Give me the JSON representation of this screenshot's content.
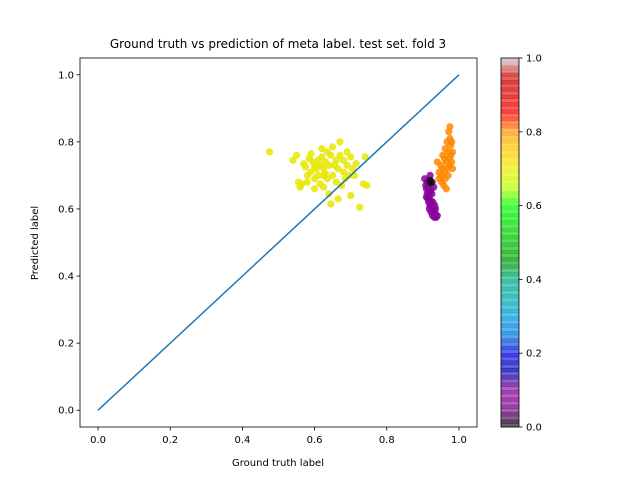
{
  "chart_data": {
    "type": "scatter",
    "title": "Ground truth vs prediction of meta label. test set. fold 3",
    "xlabel": "Ground truth label",
    "ylabel": "Predicted label",
    "xlim": [
      -0.05,
      1.05
    ],
    "ylim": [
      -0.05,
      1.05
    ],
    "xticks": [
      "0.0",
      "0.2",
      "0.4",
      "0.6",
      "0.8",
      "1.0"
    ],
    "yticks": [
      "0.0",
      "0.2",
      "0.4",
      "0.6",
      "0.8",
      "1.0"
    ],
    "grid": false,
    "reference_line": {
      "x": [
        0.0,
        1.0
      ],
      "y": [
        0.0,
        1.0
      ],
      "color": "#1f77b4"
    },
    "colorbar": {
      "colormap": "nipy_spectral",
      "range": [
        0.0,
        1.0
      ],
      "ticks": [
        "0.0",
        "0.2",
        "0.4",
        "0.6",
        "0.8",
        "1.0"
      ]
    },
    "series": [
      {
        "color_value": 0.68,
        "color": "#e6e600",
        "points": [
          [
            0.475,
            0.77
          ],
          [
            0.54,
            0.745
          ],
          [
            0.55,
            0.76
          ],
          [
            0.555,
            0.68
          ],
          [
            0.56,
            0.665
          ],
          [
            0.565,
            0.675
          ],
          [
            0.57,
            0.735
          ],
          [
            0.575,
            0.725
          ],
          [
            0.58,
            0.68
          ],
          [
            0.585,
            0.75
          ],
          [
            0.59,
            0.765
          ],
          [
            0.59,
            0.71
          ],
          [
            0.595,
            0.74
          ],
          [
            0.6,
            0.69
          ],
          [
            0.6,
            0.725
          ],
          [
            0.605,
            0.72
          ],
          [
            0.61,
            0.745
          ],
          [
            0.61,
            0.7
          ],
          [
            0.615,
            0.675
          ],
          [
            0.615,
            0.73
          ],
          [
            0.62,
            0.78
          ],
          [
            0.62,
            0.755
          ],
          [
            0.625,
            0.72
          ],
          [
            0.625,
            0.665
          ],
          [
            0.63,
            0.74
          ],
          [
            0.63,
            0.705
          ],
          [
            0.635,
            0.77
          ],
          [
            0.635,
            0.69
          ],
          [
            0.64,
            0.645
          ],
          [
            0.64,
            0.73
          ],
          [
            0.645,
            0.76
          ],
          [
            0.645,
            0.615
          ],
          [
            0.65,
            0.7
          ],
          [
            0.655,
            0.73
          ],
          [
            0.66,
            0.68
          ],
          [
            0.66,
            0.745
          ],
          [
            0.665,
            0.63
          ],
          [
            0.665,
            0.72
          ],
          [
            0.67,
            0.8
          ],
          [
            0.67,
            0.76
          ],
          [
            0.675,
            0.67
          ],
          [
            0.68,
            0.71
          ],
          [
            0.68,
            0.745
          ],
          [
            0.685,
            0.69
          ],
          [
            0.69,
            0.73
          ],
          [
            0.695,
            0.7
          ],
          [
            0.7,
            0.64
          ],
          [
            0.7,
            0.755
          ],
          [
            0.705,
            0.72
          ],
          [
            0.71,
            0.7
          ],
          [
            0.715,
            0.735
          ],
          [
            0.725,
            0.605
          ],
          [
            0.735,
            0.675
          ],
          [
            0.74,
            0.755
          ],
          [
            0.745,
            0.67
          ],
          [
            0.6,
            0.66
          ],
          [
            0.65,
            0.785
          ],
          [
            0.58,
            0.7
          ],
          [
            0.625,
            0.7
          ],
          [
            0.69,
            0.77
          ]
        ]
      },
      {
        "color_value": 0.82,
        "color": "#ff8800",
        "points": [
          [
            0.94,
            0.74
          ],
          [
            0.945,
            0.71
          ],
          [
            0.945,
            0.69
          ],
          [
            0.95,
            0.73
          ],
          [
            0.95,
            0.7
          ],
          [
            0.952,
            0.68
          ],
          [
            0.955,
            0.76
          ],
          [
            0.955,
            0.72
          ],
          [
            0.958,
            0.67
          ],
          [
            0.96,
            0.75
          ],
          [
            0.96,
            0.71
          ],
          [
            0.962,
            0.78
          ],
          [
            0.962,
            0.69
          ],
          [
            0.965,
            0.66
          ],
          [
            0.965,
            0.74
          ],
          [
            0.967,
            0.8
          ],
          [
            0.967,
            0.72
          ],
          [
            0.97,
            0.77
          ],
          [
            0.97,
            0.7
          ],
          [
            0.972,
            0.83
          ],
          [
            0.972,
            0.75
          ],
          [
            0.975,
            0.845
          ],
          [
            0.975,
            0.81
          ],
          [
            0.975,
            0.73
          ],
          [
            0.977,
            0.79
          ],
          [
            0.978,
            0.76
          ],
          [
            0.98,
            0.74
          ],
          [
            0.98,
            0.8
          ],
          [
            0.982,
            0.72
          ],
          [
            0.982,
            0.77
          ]
        ]
      },
      {
        "color_value": 0.06,
        "color": "#8a0099",
        "points": [
          [
            0.905,
            0.69
          ],
          [
            0.908,
            0.67
          ],
          [
            0.91,
            0.66
          ],
          [
            0.912,
            0.645
          ],
          [
            0.912,
            0.68
          ],
          [
            0.914,
            0.63
          ],
          [
            0.915,
            0.655
          ],
          [
            0.916,
            0.62
          ],
          [
            0.918,
            0.64
          ],
          [
            0.918,
            0.6
          ],
          [
            0.92,
            0.7
          ],
          [
            0.92,
            0.61
          ],
          [
            0.922,
            0.625
          ],
          [
            0.923,
            0.59
          ],
          [
            0.925,
            0.645
          ],
          [
            0.925,
            0.605
          ],
          [
            0.927,
            0.58
          ],
          [
            0.928,
            0.62
          ],
          [
            0.93,
            0.595
          ],
          [
            0.932,
            0.575
          ],
          [
            0.933,
            0.61
          ],
          [
            0.935,
            0.585
          ],
          [
            0.937,
            0.575
          ],
          [
            0.94,
            0.58
          ],
          [
            0.93,
            0.665
          ],
          [
            0.926,
            0.68
          ],
          [
            0.918,
            0.675
          ],
          [
            0.922,
            0.655
          ],
          [
            0.935,
            0.6
          ],
          [
            0.91,
            0.635
          ]
        ]
      },
      {
        "color_value": 0.0,
        "color": "#111111",
        "points": [
          [
            0.92,
            0.685
          ],
          [
            0.922,
            0.678
          ]
        ]
      }
    ]
  }
}
